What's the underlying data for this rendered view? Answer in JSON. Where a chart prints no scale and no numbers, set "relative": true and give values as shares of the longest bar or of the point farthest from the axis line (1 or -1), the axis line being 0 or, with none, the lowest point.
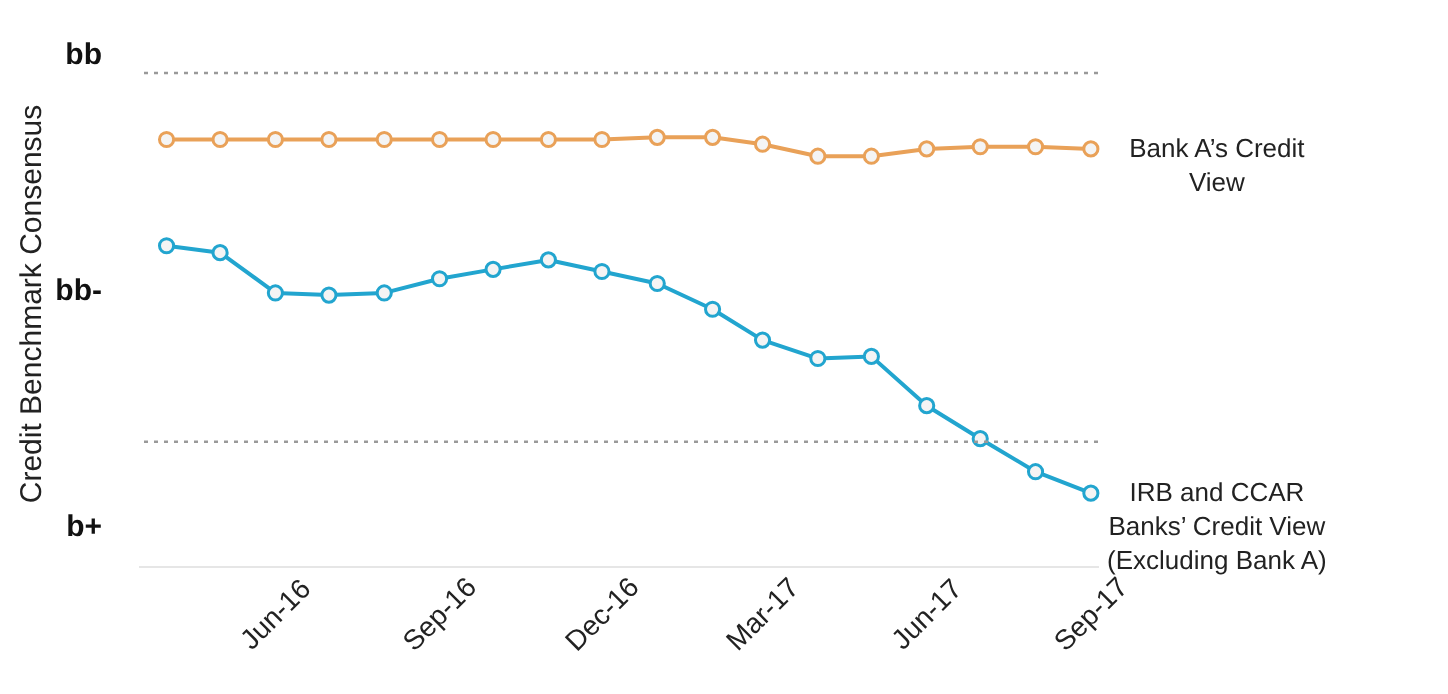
{
  "chart_data": {
    "type": "line",
    "ylabel": "Credit Benchmark Consensus",
    "relative": true,
    "x": [
      "2016-04",
      "2016-05",
      "2016-06",
      "2016-07",
      "2016-08",
      "2016-09",
      "2016-10",
      "2016-11",
      "2016-12",
      "2017-01",
      "2017-02",
      "2017-03",
      "2017-04",
      "2017-05",
      "2017-06",
      "2017-07",
      "2017-08",
      "2017-09"
    ],
    "series": [
      {
        "name": "Bank A’s Credit View",
        "color": "#e9a158",
        "values": [
          0.995,
          0.995,
          0.995,
          0.995,
          0.995,
          0.995,
          0.995,
          0.995,
          0.995,
          1,
          1,
          0.984,
          0.956,
          0.956,
          0.973,
          0.978,
          0.978,
          0.973
        ]
      },
      {
        "name": "IRB and CCAR Banks’ Credit View (Excluding Bank A)",
        "color": "#22a5cf",
        "values": [
          0.747,
          0.731,
          0.637,
          0.632,
          0.637,
          0.67,
          0.692,
          0.714,
          0.687,
          0.659,
          0.599,
          0.527,
          0.484,
          0.489,
          0.374,
          0.297,
          0.22,
          0.17
        ]
      }
    ],
    "xlim": [
      "2016-03-16",
      "2017-09-05"
    ],
    "xticks": [
      {
        "value": "2016-06",
        "label": "Jun-16"
      },
      {
        "value": "2016-09",
        "label": "Sep-16"
      },
      {
        "value": "2016-12",
        "label": "Dec-16"
      },
      {
        "value": "2017-03",
        "label": "Mar-17"
      },
      {
        "value": "2017-06",
        "label": "Jun-17"
      },
      {
        "value": "2017-09",
        "label": "Sep-17"
      }
    ],
    "annotations": [
      "bb",
      "bb-",
      "b+"
    ],
    "ref_lines": [
      {
        "axis": "y",
        "value": 1.15,
        "color": "#999999",
        "line_style": "dotted"
      },
      {
        "axis": "y",
        "value": 0.29,
        "color": "#999999",
        "line_style": "dotted"
      }
    ],
    "marker": "circle",
    "line_style": "solid",
    "grid": false,
    "legend": "right"
  }
}
